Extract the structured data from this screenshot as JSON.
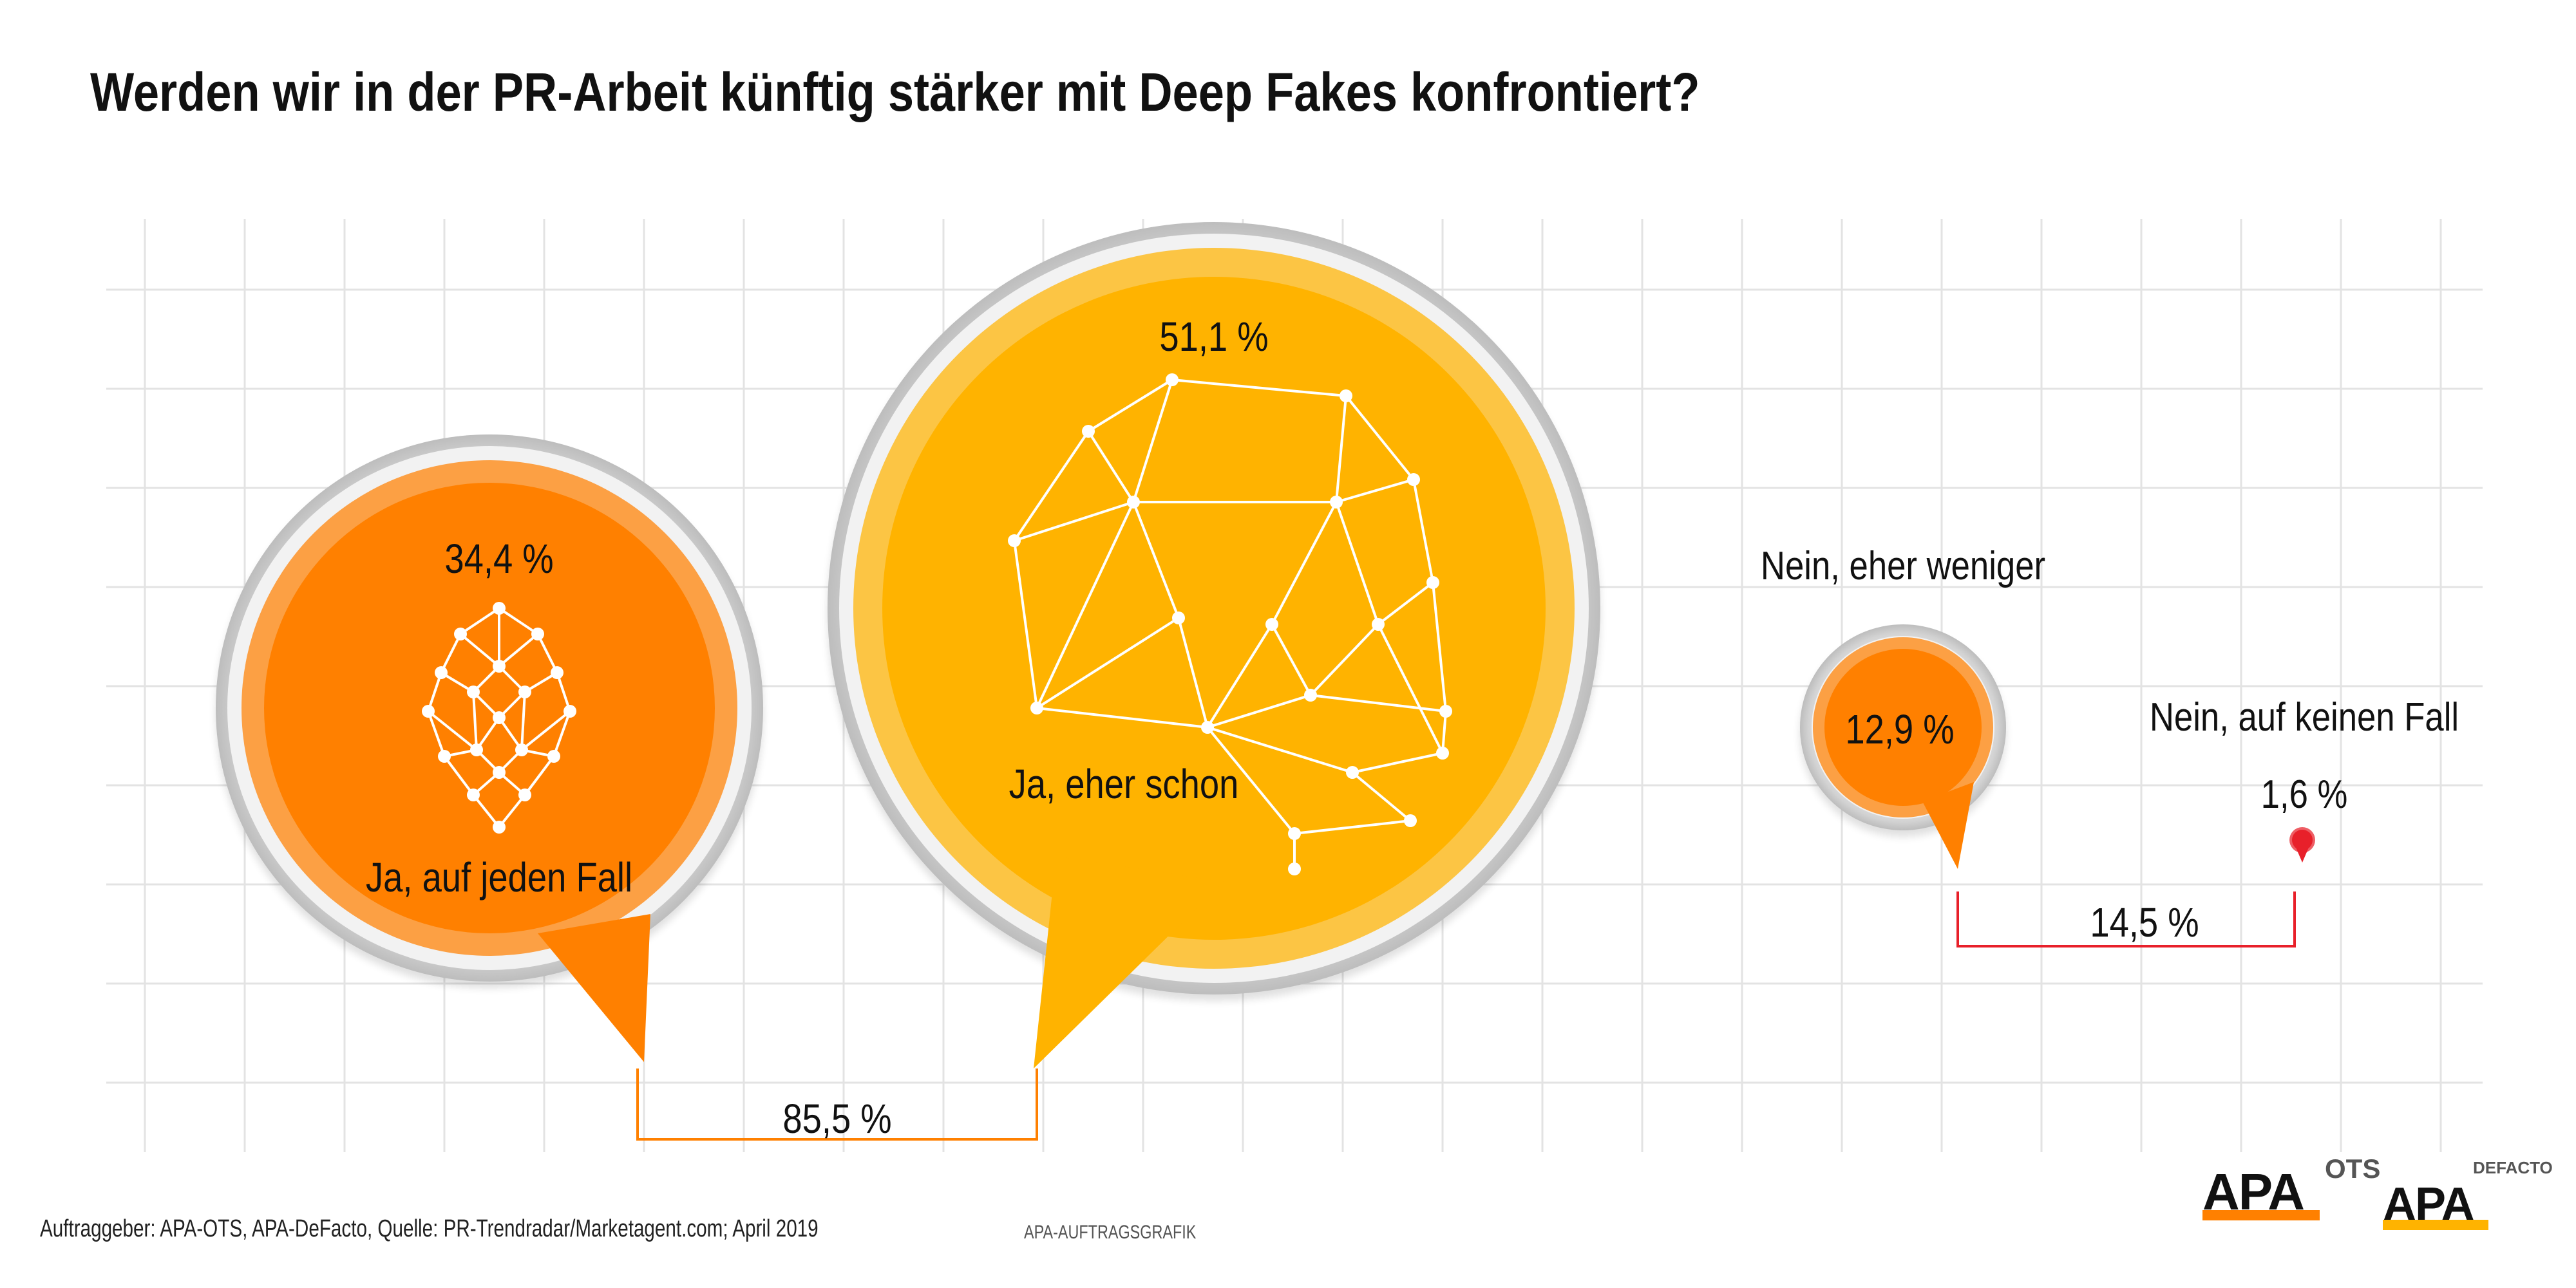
{
  "title": "Werden wir in der PR-Arbeit künftig stärker mit Deep Fakes konfrontiert?",
  "footer": {
    "source": "Auftraggeber: APA-OTS, APA-DeFacto, Quelle: PR-Trendradar/Marketagent.com; April 2019",
    "credit": "APA-AUFTRAGSGRAFIK"
  },
  "logos": [
    {
      "word": "APA",
      "sub": "OTS",
      "bar_color": "#ff8000"
    },
    {
      "word": "APA",
      "sub": "DEFACTO",
      "bar_color": "#ffb300"
    }
  ],
  "colors": {
    "ja_auf_jeden_fall": "#ff8000",
    "ja_eher_schon": "#ffb300",
    "nein_eher_weniger": "#ff8000",
    "nein_auf_keinen_fall": "#e8202a",
    "bracket_yes": "#ff8000",
    "bracket_no": "#e8202a",
    "grid": "#e3e3e3"
  },
  "chart_data": {
    "type": "bubble",
    "title": "Werden wir in der PR-Arbeit künftig stärker mit Deep Fakes konfrontiert?",
    "series": [
      {
        "name": "Ja, auf jeden Fall",
        "value": 34.4,
        "label": "34,4 %"
      },
      {
        "name": "Ja, eher schon",
        "value": 51.1,
        "label": "51,1 %"
      },
      {
        "name": "Nein, eher weniger",
        "value": 12.9,
        "label": "12,9 %"
      },
      {
        "name": "Nein, auf keinen Fall",
        "value": 1.6,
        "label": "1,6 %"
      }
    ],
    "totals": [
      {
        "value": 85.5,
        "label": "85,5 %"
      },
      {
        "value": 14.5,
        "label": "14,5 %"
      }
    ],
    "grid": true
  }
}
